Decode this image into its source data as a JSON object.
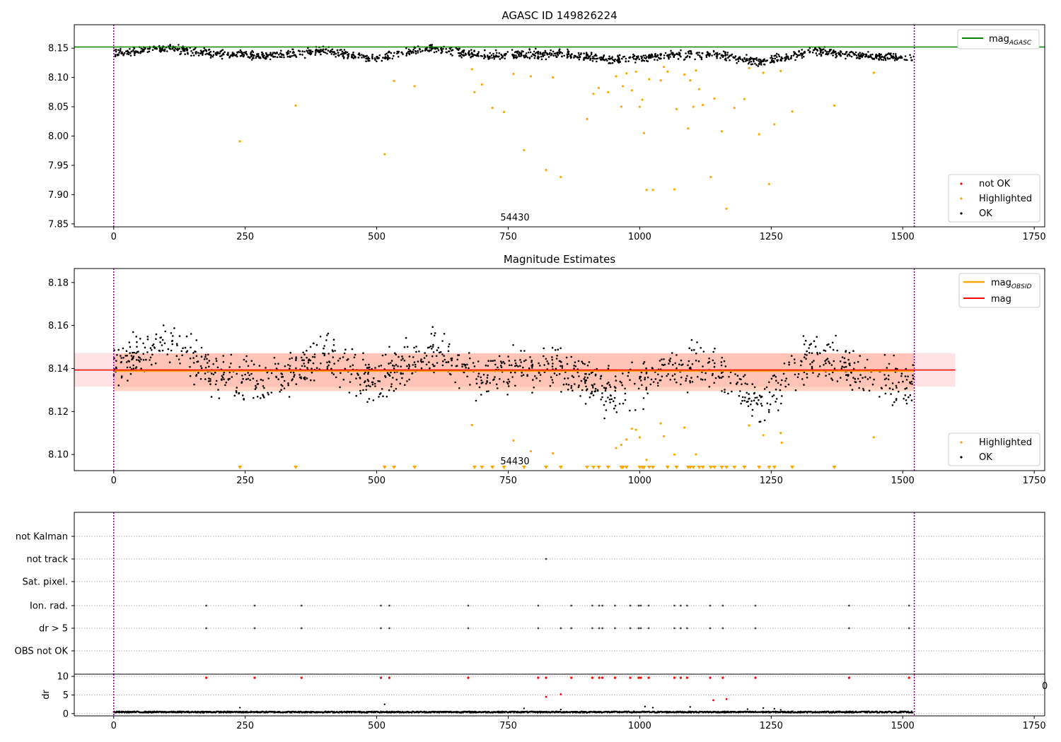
{
  "chart_data": [
    {
      "type": "scatter",
      "title": "AGASC ID 149826224",
      "xlim": [
        -75,
        1770
      ],
      "ylim": [
        7.845,
        8.19
      ],
      "xticks": [
        "0",
        "250",
        "500",
        "750",
        "1000",
        "1250",
        "1500",
        "1750"
      ],
      "yticks": [
        "7.85",
        "7.90",
        "7.95",
        "8.00",
        "8.05",
        "8.10",
        "8.15"
      ],
      "annotation": "54430",
      "vlines": [
        0,
        1522
      ],
      "hline": {
        "name": "mag_AGASC",
        "value": 8.152,
        "color": "#008000"
      },
      "legend_upper": [
        {
          "label": "mag",
          "sub": "AGASC",
          "color": "#008000"
        }
      ],
      "legend_lower": [
        {
          "label": "not OK",
          "color": "#ff0000"
        },
        {
          "label": "Highlighted",
          "color": "#ffa500"
        },
        {
          "label": "OK",
          "color": "#000000"
        }
      ],
      "ok_band": {
        "x_end": 1522,
        "segments": [
          [
            0,
            8.142
          ],
          [
            100,
            8.15
          ],
          [
            200,
            8.14
          ],
          [
            300,
            8.137
          ],
          [
            400,
            8.145
          ],
          [
            500,
            8.132
          ],
          [
            600,
            8.15
          ],
          [
            700,
            8.137
          ],
          [
            850,
            8.141
          ],
          [
            950,
            8.129
          ],
          [
            1050,
            8.138
          ],
          [
            1150,
            8.139
          ],
          [
            1230,
            8.126
          ],
          [
            1330,
            8.146
          ],
          [
            1450,
            8.135
          ],
          [
            1522,
            8.133
          ]
        ],
        "spread": 0.006
      },
      "highlighted": [
        [
          240,
          7.991
        ],
        [
          346,
          8.052
        ],
        [
          515,
          7.969
        ],
        [
          533,
          8.094
        ],
        [
          572,
          8.085
        ],
        [
          681,
          8.114
        ],
        [
          686,
          8.075
        ],
        [
          700,
          8.088
        ],
        [
          720,
          8.048
        ],
        [
          742,
          8.041
        ],
        [
          760,
          8.106
        ],
        [
          780,
          7.976
        ],
        [
          793,
          8.102
        ],
        [
          822,
          7.942
        ],
        [
          835,
          8.1
        ],
        [
          850,
          7.93
        ],
        [
          900,
          8.029
        ],
        [
          912,
          8.072
        ],
        [
          922,
          8.082
        ],
        [
          940,
          8.075
        ],
        [
          955,
          8.102
        ],
        [
          965,
          8.05
        ],
        [
          968,
          8.085
        ],
        [
          975,
          8.107
        ],
        [
          985,
          8.078
        ],
        [
          993,
          8.11
        ],
        [
          1000,
          8.05
        ],
        [
          1005,
          8.062
        ],
        [
          1008,
          8.005
        ],
        [
          1013,
          7.908
        ],
        [
          1018,
          8.097
        ],
        [
          1025,
          7.908
        ],
        [
          1040,
          8.095
        ],
        [
          1046,
          8.118
        ],
        [
          1053,
          8.11
        ],
        [
          1066,
          7.909
        ],
        [
          1070,
          8.046
        ],
        [
          1085,
          8.105
        ],
        [
          1092,
          8.013
        ],
        [
          1096,
          8.095
        ],
        [
          1102,
          8.05
        ],
        [
          1107,
          8.112
        ],
        [
          1113,
          8.08
        ],
        [
          1120,
          8.053
        ],
        [
          1135,
          7.93
        ],
        [
          1142,
          8.064
        ],
        [
          1156,
          8.008
        ],
        [
          1165,
          7.876
        ],
        [
          1180,
          8.048
        ],
        [
          1199,
          8.063
        ],
        [
          1208,
          8.116
        ],
        [
          1227,
          8.003
        ],
        [
          1235,
          8.108
        ],
        [
          1246,
          7.918
        ],
        [
          1256,
          8.02
        ],
        [
          1268,
          8.111
        ],
        [
          1290,
          8.042
        ],
        [
          1370,
          8.052
        ],
        [
          1445,
          8.108
        ]
      ]
    },
    {
      "type": "scatter",
      "title": "Magnitude Estimates",
      "xlim": [
        -75,
        1770
      ],
      "ylim": [
        8.0925,
        8.1865
      ],
      "xticks": [
        "0",
        "250",
        "500",
        "750",
        "1000",
        "1250",
        "1500",
        "1750"
      ],
      "yticks": [
        "8.10",
        "8.12",
        "8.14",
        "8.16",
        "8.18"
      ],
      "annotation": "54430",
      "vlines": [
        0,
        1522
      ],
      "mag": {
        "value": 8.1393,
        "color": "#ff0000",
        "band": [
          8.1315,
          8.1472
        ],
        "band_x": [
          -75,
          1600
        ]
      },
      "mag_obsid": {
        "value": 8.1389,
        "color": "#ffa500",
        "band": [
          8.1295,
          8.147
        ],
        "band_x": [
          0,
          1522
        ]
      },
      "legend_upper": [
        {
          "label": "mag",
          "sub": "OBSID",
          "color": "#ffa500"
        },
        {
          "label": "mag",
          "sub": "",
          "color": "#ff0000"
        }
      ],
      "legend_lower": [
        {
          "label": "Highlighted",
          "color": "#ffa500"
        },
        {
          "label": "OK",
          "color": "#000000"
        }
      ],
      "ok_band": {
        "x_end": 1522,
        "segments": [
          [
            0,
            8.141
          ],
          [
            100,
            8.151
          ],
          [
            200,
            8.137
          ],
          [
            280,
            8.133
          ],
          [
            400,
            8.146
          ],
          [
            500,
            8.133
          ],
          [
            600,
            8.149
          ],
          [
            700,
            8.136
          ],
          [
            850,
            8.141
          ],
          [
            950,
            8.128
          ],
          [
            1050,
            8.139
          ],
          [
            1150,
            8.141
          ],
          [
            1230,
            8.124
          ],
          [
            1330,
            8.147
          ],
          [
            1450,
            8.135
          ],
          [
            1522,
            8.132
          ]
        ],
        "spread": 0.0085
      },
      "highlighted": [
        [
          681,
          8.1137
        ],
        [
          760,
          8.1065
        ],
        [
          793,
          8.1015
        ],
        [
          835,
          8.1005
        ],
        [
          955,
          8.103
        ],
        [
          965,
          8.1045
        ],
        [
          975,
          8.107
        ],
        [
          985,
          8.112
        ],
        [
          993,
          8.1115
        ],
        [
          1000,
          8.108
        ],
        [
          1013,
          8.0975
        ],
        [
          1040,
          8.1145
        ],
        [
          1046,
          8.1085
        ],
        [
          1066,
          8.1
        ],
        [
          1085,
          8.1125
        ],
        [
          1107,
          8.1
        ],
        [
          1208,
          8.1135
        ],
        [
          1235,
          8.109
        ],
        [
          1268,
          8.11
        ],
        [
          1270,
          8.1055
        ],
        [
          1445,
          8.108
        ]
      ],
      "markers_below": [
        240,
        346,
        515,
        533,
        572,
        686,
        700,
        720,
        742,
        780,
        822,
        850,
        900,
        912,
        922,
        940,
        965,
        968,
        975,
        1000,
        1005,
        1008,
        1018,
        1025,
        1053,
        1070,
        1092,
        1096,
        1102,
        1113,
        1120,
        1135,
        1142,
        1156,
        1165,
        1180,
        1199,
        1227,
        1246,
        1256,
        1290,
        1370
      ]
    },
    {
      "type": "scatter",
      "title": "",
      "xlim": [
        -75,
        1770
      ],
      "categories": [
        "not Kalman",
        "not track",
        "Sat. pixel.",
        "Ion. rad.",
        "dr > 5",
        "OBS not OK"
      ],
      "vlines": [
        0,
        1522
      ],
      "flags": {
        "not track": [
          822
        ],
        "Ion. rad.": [
          176,
          268,
          357,
          508,
          524,
          674,
          807,
          870,
          910,
          923,
          929,
          953,
          982,
          998,
          1002,
          1017,
          1066,
          1078,
          1090,
          1134,
          1158,
          1220,
          1398,
          1512
        ],
        "dr > 5": [
          176,
          268,
          357,
          508,
          524,
          674,
          807,
          850,
          870,
          910,
          923,
          929,
          953,
          982,
          998,
          1002,
          1017,
          1066,
          1078,
          1090,
          1134,
          1158,
          1220,
          1398,
          1512
        ]
      }
    },
    {
      "type": "scatter",
      "title": "",
      "xlim": [
        -75,
        1770
      ],
      "ylim": [
        -0.6,
        10.6
      ],
      "ylabel": "dr",
      "xticks": [
        "0",
        "250",
        "500",
        "750",
        "1000",
        "1250",
        "1500",
        "1750"
      ],
      "yticks": [
        "0",
        "5",
        "10"
      ],
      "vlines": [
        0,
        1522
      ],
      "red_top": [
        176,
        268,
        357,
        508,
        524,
        674,
        807,
        822,
        870,
        910,
        923,
        929,
        953,
        982,
        998,
        1002,
        1017,
        1066,
        1078,
        1090,
        1134,
        1158,
        1220,
        1398,
        1512
      ],
      "red_mid": [
        [
          822,
          4.5
        ],
        [
          850,
          5.2
        ],
        [
          1140,
          3.6
        ],
        [
          1165,
          3.9
        ]
      ],
      "black_outliers": [
        [
          240,
          1.6
        ],
        [
          515,
          2.5
        ],
        [
          780,
          1.4
        ],
        [
          850,
          1.1
        ],
        [
          1010,
          1.9
        ],
        [
          1025,
          1.6
        ],
        [
          1096,
          1.8
        ],
        [
          1205,
          1.2
        ],
        [
          1235,
          1.5
        ],
        [
          1256,
          1.3
        ],
        [
          1268,
          1.0
        ]
      ]
    }
  ],
  "clipped_tick": "0"
}
